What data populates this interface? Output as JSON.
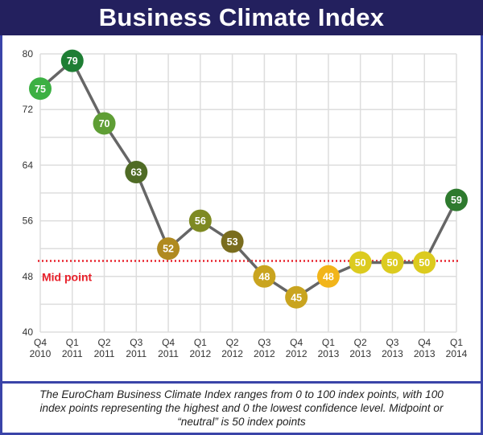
{
  "header": {
    "title": "Business Climate Index"
  },
  "caption": {
    "text": "The EuroCham Business Climate Index ranges from 0 to 100 index points, with 100 index points representing the highest and 0 the lowest confidence level. Midpoint or “neutral” is 50 index points"
  },
  "colors": {
    "frame": "#3a44a8",
    "title_bg": "#23205e",
    "title_text": "#ffffff",
    "line": "#666666",
    "grid": "#dddddd",
    "midline": "#e8202a"
  },
  "chart_data": {
    "type": "line",
    "title": "Business Climate Index",
    "xlabel": "",
    "ylabel": "",
    "ylim": [
      40,
      80
    ],
    "yticks": [
      40,
      48,
      56,
      64,
      72,
      80
    ],
    "ygrid_step": 4,
    "grid": true,
    "legend": "none",
    "categories": [
      [
        "Q4",
        "2010"
      ],
      [
        "Q1",
        "2011"
      ],
      [
        "Q2",
        "2011"
      ],
      [
        "Q3",
        "2011"
      ],
      [
        "Q4",
        "2011"
      ],
      [
        "Q1",
        "2012"
      ],
      [
        "Q2",
        "2012"
      ],
      [
        "Q3",
        "2012"
      ],
      [
        "Q4",
        "2012"
      ],
      [
        "Q1",
        "2013"
      ],
      [
        "Q2",
        "2013"
      ],
      [
        "Q3",
        "2013"
      ],
      [
        "Q4",
        "2013"
      ],
      [
        "Q1",
        "2014"
      ]
    ],
    "series": [
      {
        "name": "Business Climate Index",
        "values": [
          75,
          79,
          70,
          63,
          52,
          56,
          53,
          48,
          45,
          48,
          50,
          50,
          50,
          59
        ],
        "point_colors": [
          "#3cb043",
          "#1e7e34",
          "#5f9e35",
          "#4f6b25",
          "#b08a20",
          "#7e8a22",
          "#7a6d1e",
          "#c9a41f",
          "#c9a41f",
          "#f2b51a",
          "#dccb1f",
          "#dccb1f",
          "#dccb1f",
          "#2e7a2e"
        ]
      }
    ],
    "annotations": [
      {
        "type": "hline",
        "value": 50,
        "label": "Mid point",
        "style": "dotted"
      }
    ]
  }
}
